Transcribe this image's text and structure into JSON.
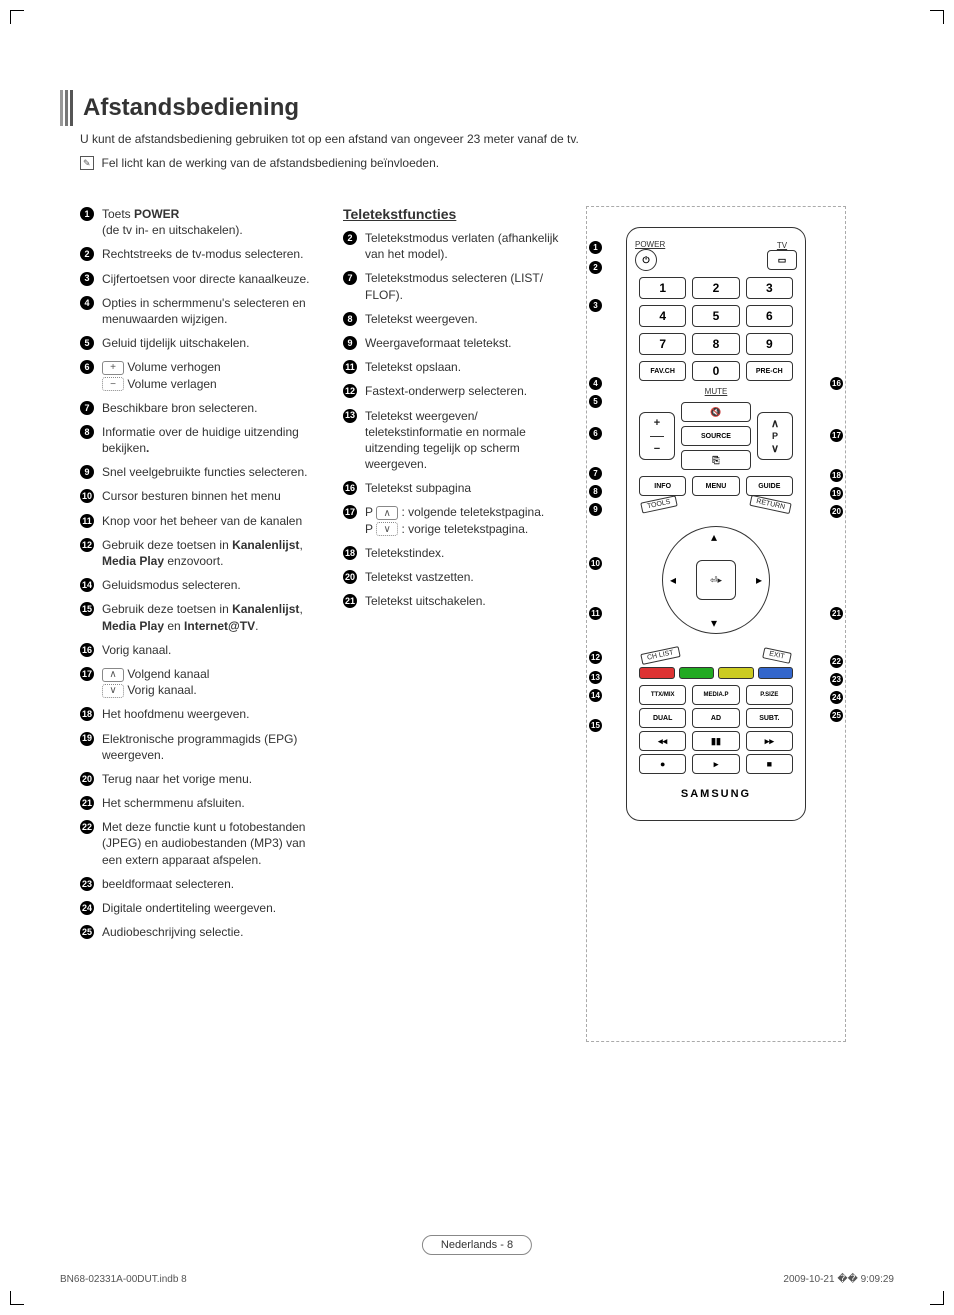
{
  "page": {
    "title": "Afstandsbediening",
    "intro": "U kunt de afstandsbediening gebruiken tot op een afstand van ongeveer 23 meter vanaf de tv.",
    "note_icon": "✎",
    "note": "Fel licht kan de werking van de afstandsbediening beïnvloeden.",
    "teletext_heading": "Teletekstfuncties",
    "footer_pill": "Nederlands - 8",
    "footer_left": "BN68-02331A-00DUT.indb   8",
    "footer_right": "2009-10-21   �� 9:09:29"
  },
  "main_list": [
    {
      "n": 1,
      "html": "Toets <b>POWER</b><br>(de tv in- en uitschakelen)."
    },
    {
      "n": 2,
      "html": "Rechtstreeks de tv-modus selecteren."
    },
    {
      "n": 3,
      "html": "Cijfertoetsen voor directe kanaalkeuze."
    },
    {
      "n": 4,
      "html": "Opties in schermmenu's selecteren en menuwaarden wijzigen."
    },
    {
      "n": 5,
      "html": "Geluid tijdelijk uitschakelen."
    },
    {
      "n": 6,
      "html": "<span class='mini-btn'>+</span> Volume verhogen<br><span class='mini-btn dot'>−</span> Volume verlagen"
    },
    {
      "n": 7,
      "html": "Beschikbare bron selecteren."
    },
    {
      "n": 8,
      "html": "Informatie over de huidige uitzending bekijken<b>.</b>"
    },
    {
      "n": 9,
      "html": "Snel veelgebruikte functies selecteren."
    },
    {
      "n": 10,
      "html": "Cursor besturen binnen het menu"
    },
    {
      "n": 11,
      "html": "Knop voor het beheer van de kanalen"
    },
    {
      "n": 12,
      "html": "Gebruik deze toetsen in <b>Kanalenlijst</b>, <b>Media Play</b> enzovoort."
    },
    {
      "n": 14,
      "html": "Geluidsmodus selecteren."
    },
    {
      "n": 15,
      "html": "Gebruik deze toetsen in <b>Kanalenlijst</b>, <b>Media Play</b> en <b>Internet@TV</b>."
    },
    {
      "n": 16,
      "html": "Vorig kanaal."
    },
    {
      "n": 17,
      "html": "<span class='mini-btn'>∧</span> Volgend kanaal<br><span class='mini-btn dot'>∨</span> Vorig kanaal."
    },
    {
      "n": 18,
      "html": "Het hoofdmenu weergeven."
    },
    {
      "n": 19,
      "html": "Elektronische programmagids (EPG) weergeven."
    },
    {
      "n": 20,
      "html": "Terug naar het vorige menu."
    },
    {
      "n": 21,
      "html": "Het schermmenu afsluiten."
    },
    {
      "n": 22,
      "html": "Met deze functie kunt u fotobestanden (JPEG) en audiobestanden (MP3) van een extern apparaat afspelen."
    },
    {
      "n": 23,
      "html": "beeldformaat selecteren."
    },
    {
      "n": 24,
      "html": "Digitale ondertiteling weergeven."
    },
    {
      "n": 25,
      "html": "Audiobeschrijving selectie."
    }
  ],
  "teletext_list": [
    {
      "n": 2,
      "html": "Teletekstmodus verlaten (afhankelijk van het model)."
    },
    {
      "n": 7,
      "html": "Teletekstmodus selecteren (LIST/ FLOF)."
    },
    {
      "n": 8,
      "html": "Teletekst weergeven."
    },
    {
      "n": 9,
      "html": "Weergaveformaat teletekst."
    },
    {
      "n": 11,
      "html": "Teletekst opslaan."
    },
    {
      "n": 12,
      "html": "Fastext-onderwerp selecteren."
    },
    {
      "n": 13,
      "html": "Teletekst weergeven/ teletekstinformatie en normale uitzending tegelijk op scherm weergeven."
    },
    {
      "n": 16,
      "html": "Teletekst subpagina"
    },
    {
      "n": 17,
      "html": "P <span class='mini-btn'>∧</span> : volgende teletekstpagina.<br>P <span class='mini-btn dot'>∨</span> : vorige teletekstpagina."
    },
    {
      "n": 18,
      "html": "Teletekstindex."
    },
    {
      "n": 20,
      "html": "Teletekst vastzetten."
    },
    {
      "n": 21,
      "html": "Teletekst uitschakelen."
    }
  ],
  "remote": {
    "power_label": "POWER",
    "tv_label": "TV",
    "numbers": [
      "1",
      "2",
      "3",
      "4",
      "5",
      "6",
      "7",
      "8",
      "9"
    ],
    "favch": "FAV.CH",
    "zero": "0",
    "prech": "PRE-CH",
    "mute": "MUTE",
    "source": "SOURCE",
    "info": "INFO",
    "menu": "MENU",
    "guide": "GUIDE",
    "tools": "TOOLS",
    "return": "RETURN",
    "chlist": "CH LIST",
    "exit": "EXIT",
    "ttxmix": "TTX/MIX",
    "mediap": "MEDIA.P",
    "psize": "P.SIZE",
    "dual": "DUAL",
    "ad": "AD",
    "subt": "SUBT.",
    "brand": "SAMSUNG",
    "vol_plus": "+",
    "vol_minus": "−",
    "p": "P",
    "up": "∧",
    "down": "∨",
    "enter": "⏎▸",
    "rew": "◂◂",
    "pause": "▮▮",
    "ff": "▸▸",
    "rec": "●",
    "play": "▸",
    "stop": "■",
    "colors": [
      "#d33",
      "#2a2",
      "#cc2",
      "#36c"
    ]
  },
  "left_callouts": [
    1,
    2,
    3,
    4,
    5,
    6,
    7,
    8,
    9,
    10,
    11,
    12,
    13,
    14,
    15
  ],
  "right_callouts": [
    16,
    17,
    18,
    19,
    20,
    21,
    22,
    23,
    24,
    25
  ],
  "style": {
    "text_color": "#333",
    "badge_bg": "#000",
    "badge_fg": "#fff",
    "dash_color": "#aaa",
    "border_color": "#333"
  }
}
